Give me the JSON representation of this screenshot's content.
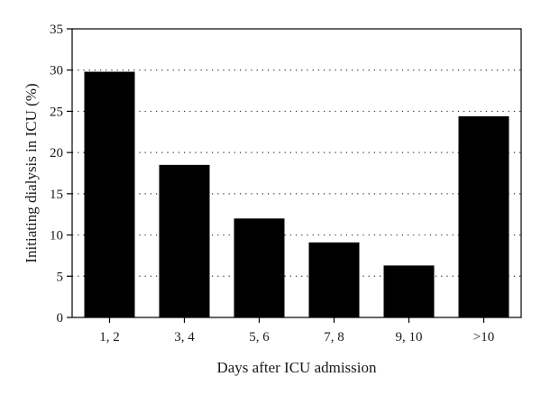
{
  "chart_data": {
    "type": "bar",
    "categories": [
      "1, 2",
      "3, 4",
      "5, 6",
      "7, 8",
      "9, 10",
      ">10"
    ],
    "values": [
      29.8,
      18.5,
      12.0,
      9.1,
      6.3,
      24.4
    ],
    "title": "",
    "xlabel": "Days after ICU admission",
    "ylabel": "Initiating dialysis in ICU (%)",
    "ylim": [
      0,
      35
    ],
    "yticks": [
      0,
      5,
      10,
      15,
      20,
      25,
      30,
      35
    ],
    "grid": "horizontal dotted",
    "bar_color": "#000000",
    "legend": "none"
  }
}
